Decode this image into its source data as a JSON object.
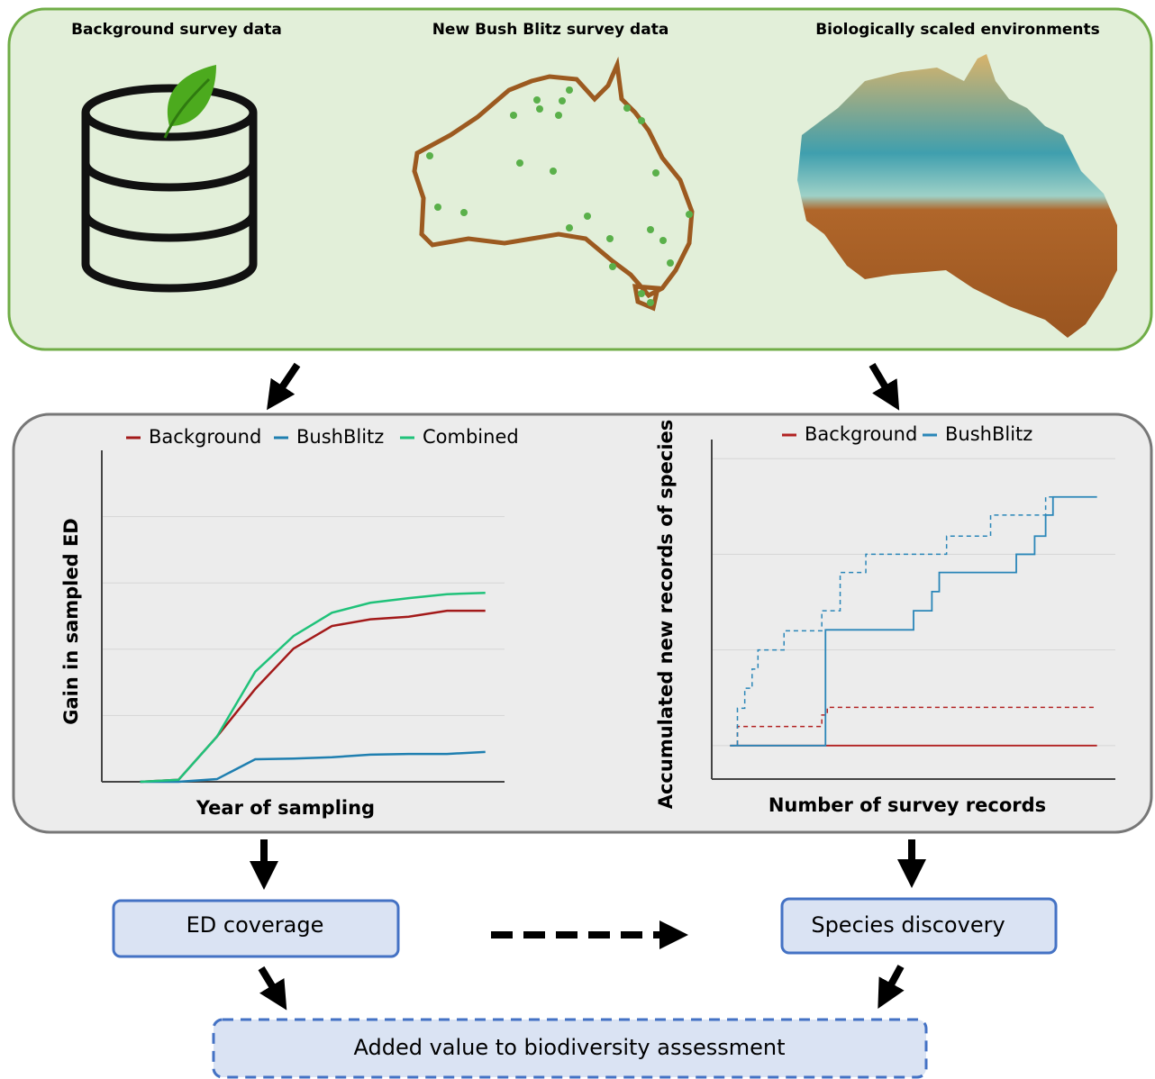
{
  "panel_titles": [
    "Background survey data",
    "New Bush Blitz survey data",
    "Biologically scaled environments"
  ],
  "chart_data": [
    {
      "type": "line",
      "x_label": "Year of sampling",
      "y_label": "Gain in sampled ED",
      "x": [
        1,
        2,
        3,
        4,
        5,
        6,
        7,
        8,
        9,
        10
      ],
      "xlim": [
        0,
        10.5
      ],
      "ylim": [
        0,
        5
      ],
      "grid_y": [
        1,
        2,
        3,
        4
      ],
      "series": [
        {
          "name": "Background",
          "color": "#a31a1a",
          "values": [
            0,
            0.03,
            0.68,
            1.4,
            2.01,
            2.35,
            2.45,
            2.49,
            2.58,
            2.58
          ]
        },
        {
          "name": "BushBlitz",
          "color": "#1f7fb0",
          "values": [
            0,
            0,
            0.04,
            0.34,
            0.35,
            0.37,
            0.41,
            0.42,
            0.42,
            0.45
          ]
        },
        {
          "name": "Combined",
          "color": "#20c27a",
          "values": [
            0,
            0.03,
            0.68,
            1.66,
            2.2,
            2.55,
            2.7,
            2.77,
            2.83,
            2.85
          ]
        }
      ]
    },
    {
      "type": "step",
      "x_label": "Number of survey records",
      "y_label": "Accumulated new records of species",
      "xlim": [
        -5,
        105
      ],
      "ylim": [
        -0.35,
        3.2
      ],
      "grid_y": [
        0,
        1,
        2,
        3
      ],
      "series": [
        {
          "name": "Background",
          "color": "#b22222",
          "x": [
            0,
            100
          ],
          "values": [
            0,
            0
          ],
          "dashed_x": [
            0,
            2,
            25,
            26.5,
            100
          ],
          "dashed_values": [
            0,
            0.2,
            0.32,
            0.4,
            0.4
          ]
        },
        {
          "name": "BushBlitz",
          "color": "#2a86b8",
          "x": [
            0,
            26,
            50,
            55,
            57,
            78,
            83,
            86,
            88,
            100
          ],
          "values": [
            0,
            1.21,
            1.41,
            1.61,
            1.81,
            2.0,
            2.19,
            2.41,
            2.6,
            2.6
          ],
          "dashed_x": [
            0,
            2,
            4,
            6,
            7.6,
            14.7,
            25,
            30,
            37,
            59,
            71,
            86,
            100
          ],
          "dashed_values": [
            0,
            0.39,
            0.6,
            0.8,
            1.0,
            1.2,
            1.41,
            1.81,
            2.0,
            2.19,
            2.41,
            2.6,
            2.6
          ]
        }
      ]
    }
  ],
  "boxes": {
    "ed_coverage": "ED coverage",
    "species_discovery": "Species discovery",
    "added_value": "Added value to biodiversity assessment"
  }
}
